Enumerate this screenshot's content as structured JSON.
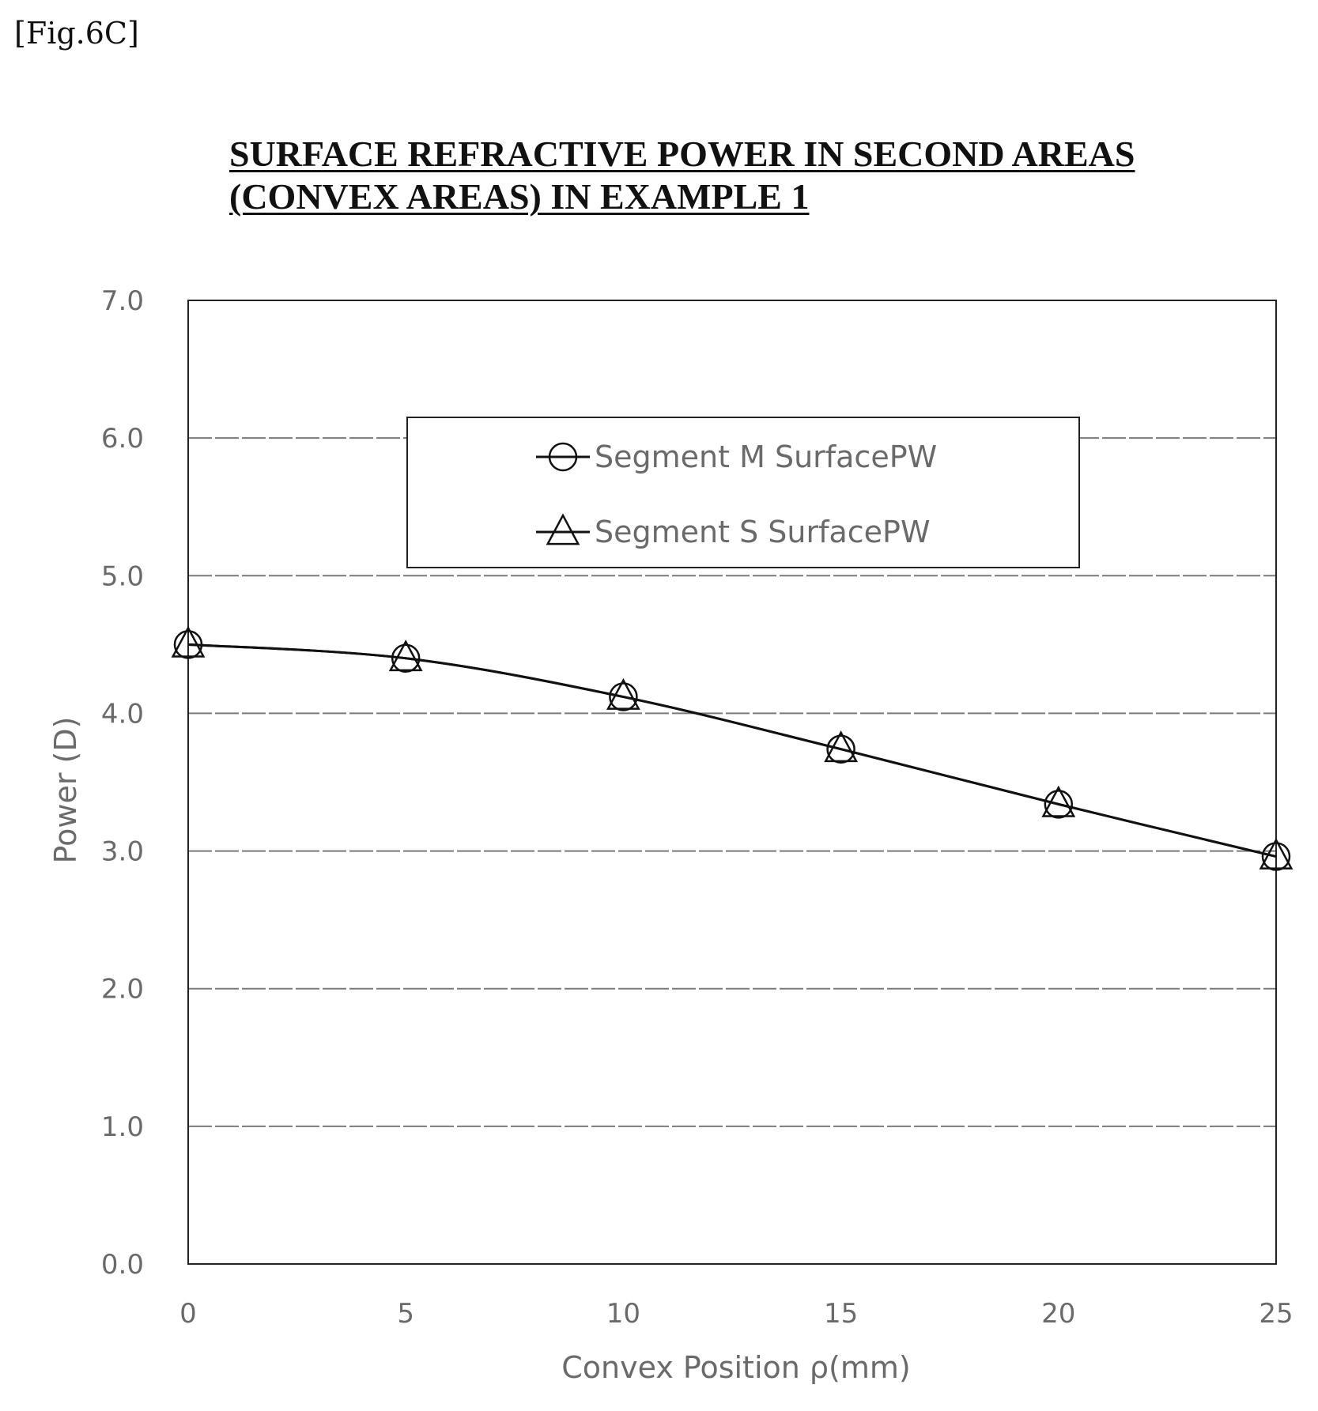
{
  "figure_label": "[Fig.6C]",
  "chart_data": {
    "type": "line",
    "title_lines": [
      "SURFACE REFRACTIVE POWER IN SECOND AREAS",
      "(CONVEX AREAS) IN EXAMPLE 1"
    ],
    "xlabel": "Convex Position ρ(mm)",
    "ylabel": "Power (D)",
    "xlim": [
      0,
      25
    ],
    "ylim": [
      0,
      7
    ],
    "x_ticks": [
      "0",
      "5",
      "10",
      "15",
      "20",
      "25"
    ],
    "y_ticks": [
      "0.0",
      "1.0",
      "2.0",
      "3.0",
      "4.0",
      "5.0",
      "6.0",
      "7.0"
    ],
    "grid": "horizontal",
    "legend_position": "upper-center",
    "x": [
      0,
      5,
      10,
      15,
      20,
      25
    ],
    "series": [
      {
        "name": "Segment M SurfacePW",
        "marker": "circle",
        "values": [
          4.5,
          4.4,
          4.12,
          3.74,
          3.34,
          2.96
        ]
      },
      {
        "name": "Segment S SurfacePW",
        "marker": "triangle",
        "values": [
          4.5,
          4.4,
          4.12,
          3.74,
          3.34,
          2.96
        ]
      }
    ],
    "colors": {
      "line": "#111111",
      "grid": "#7a7a7a",
      "text": "#6a6a6a"
    }
  }
}
